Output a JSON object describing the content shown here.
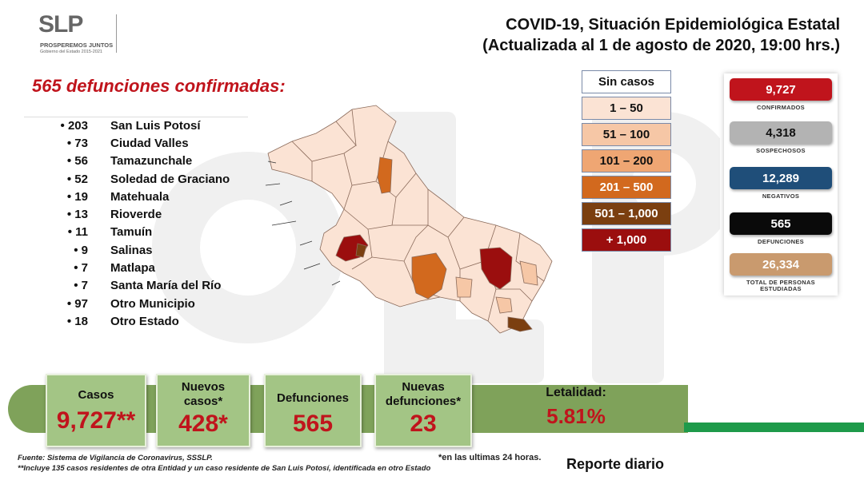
{
  "logo": {
    "name": "SLP",
    "slogan": "PROSPEREMOS JUNTOS",
    "subtitle": "Gobierno del Estado 2015-2021"
  },
  "title": {
    "line1": "COVID-19, Situación Epidemiológica Estatal",
    "line2": "(Actualizada al 1 de agosto de 2020, 19:00 hrs.)"
  },
  "headline": "565 defunciones confirmadas:",
  "deaths": [
    {
      "count": "203",
      "name": "San Luis Potosí"
    },
    {
      "count": "73",
      "name": "Ciudad Valles"
    },
    {
      "count": "56",
      "name": "Tamazunchale"
    },
    {
      "count": "52",
      "name": "Soledad de Graciano"
    },
    {
      "count": "19",
      "name": "Matehuala"
    },
    {
      "count": "13",
      "name": "Rioverde"
    },
    {
      "count": "11",
      "name": "Tamuín"
    },
    {
      "count": "9",
      "name": "Salinas"
    },
    {
      "count": "7",
      "name": "Matlapa"
    },
    {
      "count": "7",
      "name": "Santa María del Río"
    },
    {
      "count": "97",
      "name": "Otro Municipio"
    },
    {
      "count": "18",
      "name": "Otro Estado"
    }
  ],
  "legend": [
    {
      "label": "Sin casos",
      "color": "#ffffff",
      "text_color": "#111111"
    },
    {
      "label": "1 – 50",
      "color": "#fbe3d4",
      "text_color": "#111111"
    },
    {
      "label": "51 – 100",
      "color": "#f6c7a6",
      "text_color": "#111111"
    },
    {
      "label": "101 – 200",
      "color": "#efa673",
      "text_color": "#111111"
    },
    {
      "label": "201 – 500",
      "color": "#d2691e",
      "text_color": "#ffffff"
    },
    {
      "label": "501 – 1,000",
      "color": "#7b3f10",
      "text_color": "#ffffff"
    },
    {
      "label": "+ 1,000",
      "color": "#9b0e0e",
      "text_color": "#ffffff"
    }
  ],
  "stats": [
    {
      "value": "9,727",
      "label": "CONFIRMADOS",
      "color": "#c0141c"
    },
    {
      "value": "4,318",
      "label": "SOSPECHOSOS",
      "color": "#b3b3b3",
      "text_color": "#111111"
    },
    {
      "value": "12,289",
      "label": "NEGATIVOS",
      "color": "#1f4e79"
    },
    {
      "value": "565",
      "label": "DEFUNCIONES",
      "color": "#0a0a0a"
    },
    {
      "value": "26,334",
      "label": "TOTAL DE PERSONAS ESTUDIADAS",
      "color": "#c99a6e"
    }
  ],
  "cards": {
    "casos": {
      "label": "Casos",
      "value": "9,727**"
    },
    "nuevos_casos": {
      "label_line1": "Nuevos",
      "label_line2": "casos*",
      "value": "428*"
    },
    "defunciones": {
      "label": "Defunciones",
      "value": "565"
    },
    "nuevas_defunciones": {
      "label_line1": "Nuevas",
      "label_line2": "defunciones*",
      "value": "23"
    },
    "letalidad": {
      "label": "Letalidad:",
      "value": "5.81%"
    }
  },
  "footnotes": {
    "source": "Fuente: Sistema de Vigilancia de Coronavirus, SSSLP.",
    "note": "**Incluye 135 casos residentes de otra Entidad y un caso residente de San Luis Potosí, identificada en otro Estado",
    "asterisk": "*en las ultimas 24 horas."
  },
  "report": "Reporte diario"
}
